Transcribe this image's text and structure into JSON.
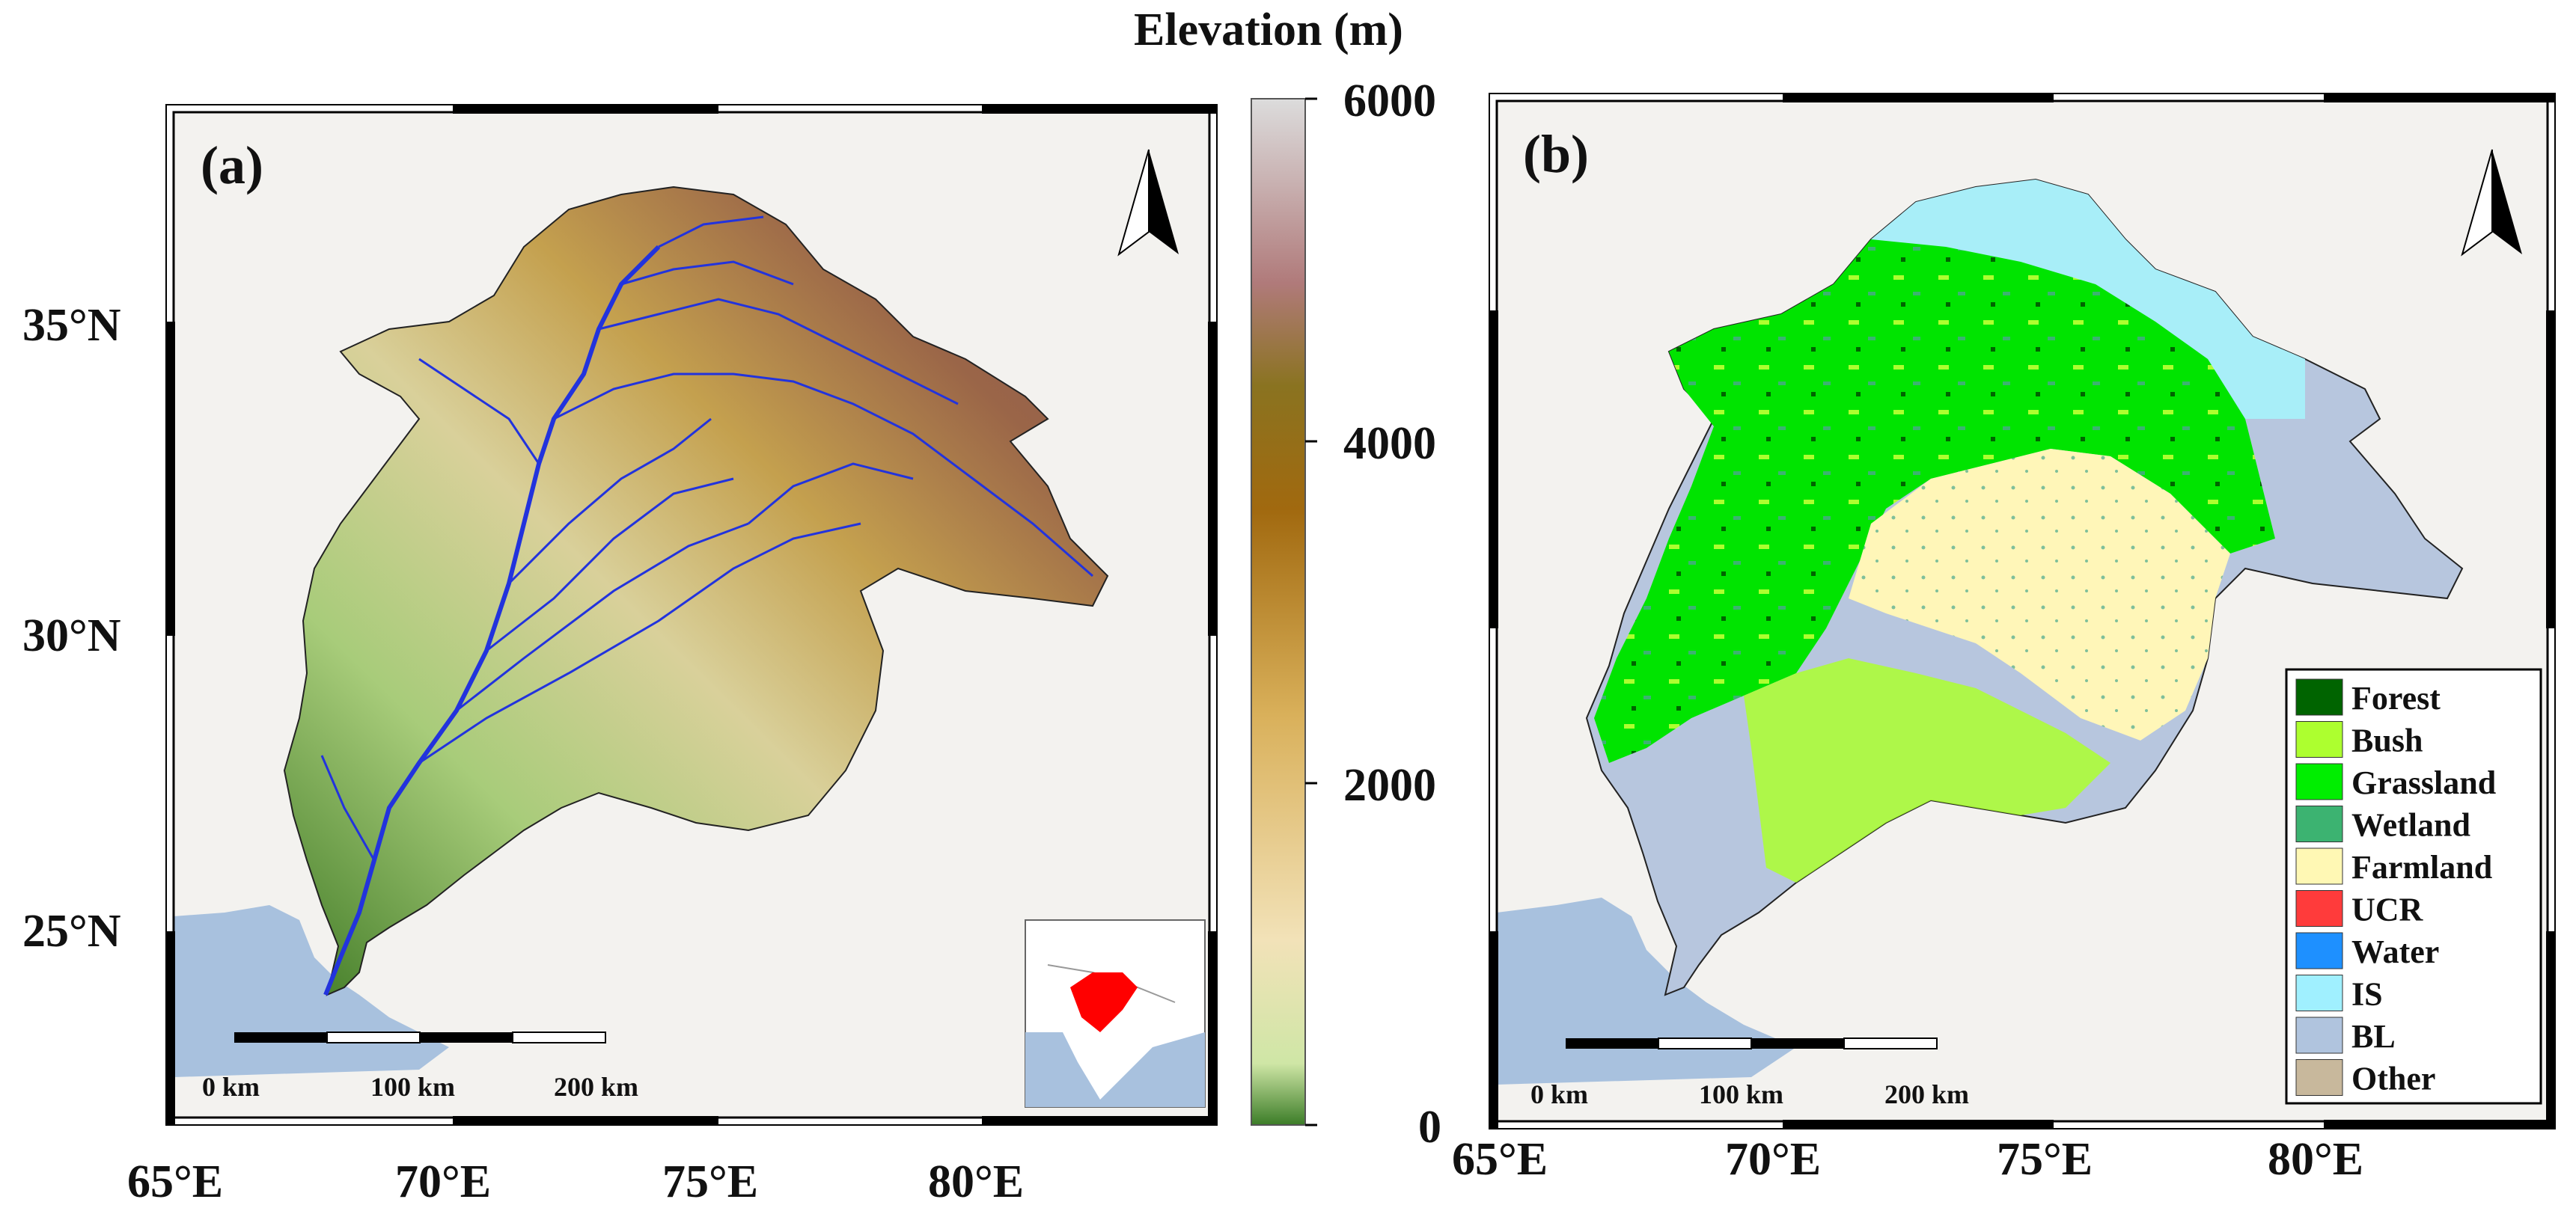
{
  "colorbar": {
    "title": "Elevation (m)",
    "ticks": [
      0,
      2000,
      4000,
      6000
    ],
    "colors": [
      "#3c7d28",
      "#cfe6a6",
      "#f2e2b8",
      "#d9b05a",
      "#a1690f",
      "#8a7320",
      "#b07a7a",
      "#c9b2b2",
      "#dcdcdc"
    ]
  },
  "panel_a": {
    "label": "(a)",
    "lat_labels": [
      "35°N",
      "30°N",
      "25°N"
    ],
    "lon_labels": [
      "65°E",
      "70°E",
      "75°E",
      "80°E"
    ],
    "scalebar": [
      "0 km",
      "100 km",
      "200 km"
    ]
  },
  "panel_b": {
    "label": "(b)",
    "lon_labels": [
      "65°E",
      "70°E",
      "75°E",
      "80°E"
    ],
    "scalebar": [
      "0 km",
      "100 km",
      "200 km"
    ],
    "legend": [
      {
        "name": "Forest",
        "color": "#006400"
      },
      {
        "name": "Bush",
        "color": "#adff2f"
      },
      {
        "name": "Grassland",
        "color": "#00ee00"
      },
      {
        "name": "Wetland",
        "color": "#3cb371"
      },
      {
        "name": "Farmland",
        "color": "#fff8b4"
      },
      {
        "name": "UCR",
        "color": "#ff3b3b"
      },
      {
        "name": "Water",
        "color": "#1e90ff"
      },
      {
        "name": "IS",
        "color": "#a0f0ff"
      },
      {
        "name": "BL",
        "color": "#b0c4de"
      },
      {
        "name": "Other",
        "color": "#c8b89c"
      }
    ]
  },
  "map_colors": {
    "background": "#f3f2ef",
    "sea": "#a8c1de",
    "river": "#2233dd"
  }
}
